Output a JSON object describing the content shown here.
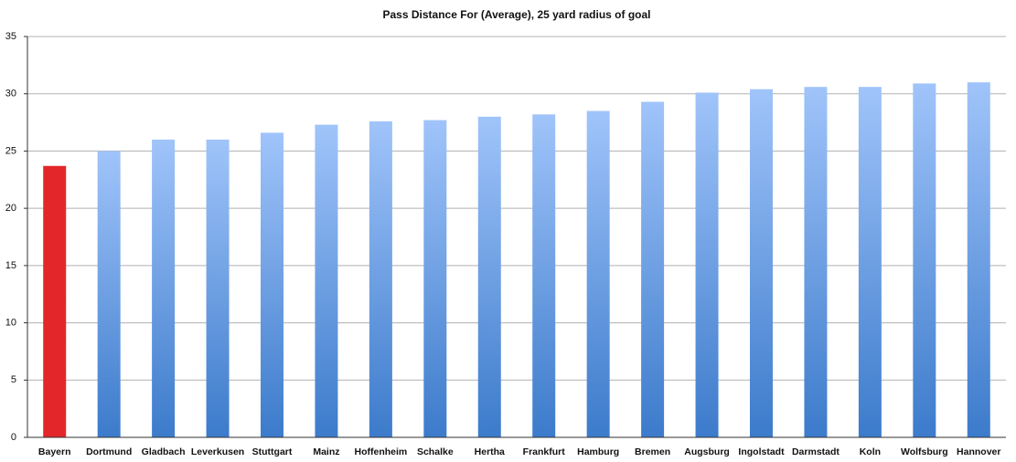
{
  "chart_data": {
    "type": "bar",
    "title": "Pass Distance For (Average), 25 yard radius of goal",
    "categories": [
      "Bayern",
      "Dortmund",
      "Gladbach",
      "Leverkusen",
      "Stuttgart",
      "Mainz",
      "Hoffenheim",
      "Schalke",
      "Hertha",
      "Frankfurt",
      "Hamburg",
      "Bremen",
      "Augsburg",
      "Ingolstadt",
      "Darmstadt",
      "Koln",
      "Wolfsburg",
      "Hannover"
    ],
    "values": [
      23.7,
      25.0,
      26.0,
      26.0,
      26.6,
      27.3,
      27.6,
      27.7,
      28.0,
      28.2,
      28.5,
      29.3,
      30.1,
      30.4,
      30.6,
      30.6,
      30.9,
      31.0
    ],
    "colors": [
      [
        "#e3262a",
        "#e3262a"
      ],
      [
        "#a0c4fa",
        "#3c7bcb"
      ],
      [
        "#a0c4fa",
        "#3c7bcb"
      ],
      [
        "#a0c4fa",
        "#3c7bcb"
      ],
      [
        "#a0c4fa",
        "#3c7bcb"
      ],
      [
        "#a0c4fa",
        "#3c7bcb"
      ],
      [
        "#a0c4fa",
        "#3c7bcb"
      ],
      [
        "#a0c4fa",
        "#3c7bcb"
      ],
      [
        "#a0c4fa",
        "#3c7bcb"
      ],
      [
        "#a0c4fa",
        "#3c7bcb"
      ],
      [
        "#a0c4fa",
        "#3c7bcb"
      ],
      [
        "#a0c4fa",
        "#3c7bcb"
      ],
      [
        "#a0c4fa",
        "#3c7bcb"
      ],
      [
        "#a0c4fa",
        "#3c7bcb"
      ],
      [
        "#a0c4fa",
        "#3c7bcb"
      ],
      [
        "#a0c4fa",
        "#3c7bcb"
      ],
      [
        "#a0c4fa",
        "#3c7bcb"
      ],
      [
        "#a0c4fa",
        "#3c7bcb"
      ]
    ],
    "ylim": [
      0,
      35
    ],
    "yticks": [
      0,
      5,
      10,
      15,
      20,
      25,
      30,
      35
    ],
    "grid": true
  }
}
